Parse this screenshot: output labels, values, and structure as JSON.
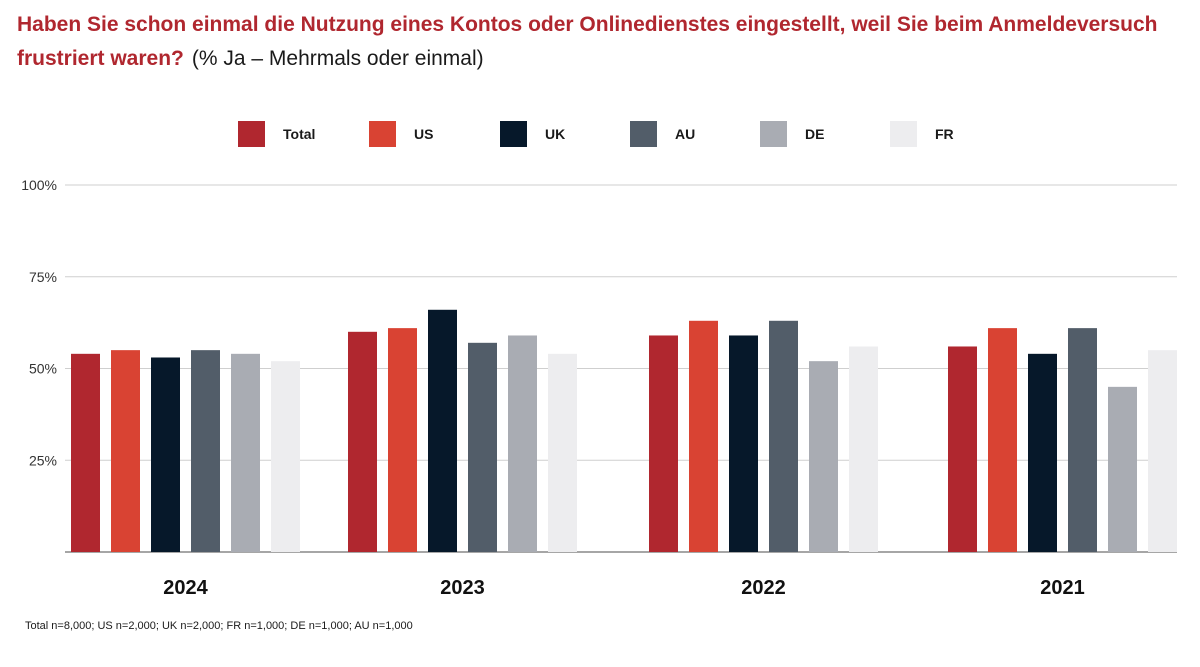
{
  "title": {
    "main": "Haben Sie schon einmal die Nutzung eines Kontos oder Onlinedienstes eingestellt, weil Sie beim Anmeldeversuch frustriert waren?",
    "sub": "(% Ja – Mehrmals oder einmal)"
  },
  "colors": {
    "Total": "#b0272f",
    "US": "#d94333",
    "UK": "#06182a",
    "AU": "#525d69",
    "DE": "#a9acb3",
    "FR": "#ededef",
    "grid": "#cfcfcf",
    "axis": "#888888"
  },
  "chart_data": {
    "type": "bar",
    "title": "Haben Sie schon einmal die Nutzung eines Kontos oder Onlinedienstes eingestellt, weil Sie beim Anmeldeversuch frustriert waren?",
    "categories": [
      "2024",
      "2023",
      "2022",
      "2021"
    ],
    "series": [
      {
        "name": "Total",
        "values": [
          54,
          60,
          59,
          56
        ]
      },
      {
        "name": "US",
        "values": [
          55,
          61,
          63,
          61
        ]
      },
      {
        "name": "UK",
        "values": [
          53,
          66,
          59,
          54
        ]
      },
      {
        "name": "AU",
        "values": [
          55,
          57,
          63,
          61
        ]
      },
      {
        "name": "DE",
        "values": [
          54,
          59,
          52,
          45
        ]
      },
      {
        "name": "FR",
        "values": [
          52,
          54,
          56,
          55
        ]
      }
    ],
    "yticks": [
      "100%",
      "75%",
      "50%",
      "25%"
    ],
    "ytick_values": [
      100,
      75,
      50,
      25
    ],
    "ylim": [
      0,
      100
    ],
    "xlabel": "",
    "ylabel": "",
    "legend_position": "top",
    "grid": true
  },
  "footnote": "Total n=8,000; US n=2,000; UK n=2,000; FR n=1,000; DE n=1,000; AU n=1,000"
}
